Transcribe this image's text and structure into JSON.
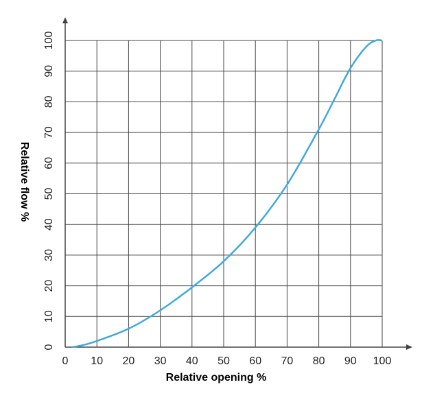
{
  "chart_data": {
    "type": "line",
    "x_label": "Relative opening %",
    "y_label": "Relative flow %",
    "series": [
      {
        "name": "flow",
        "color": "#3fa9dc",
        "x": [
          2,
          5,
          10,
          20,
          30,
          40,
          50,
          60,
          70,
          80,
          85,
          90,
          95,
          98,
          100
        ],
        "values": [
          0,
          0.5,
          2,
          6,
          12,
          19.5,
          28,
          39,
          53,
          71,
          81,
          91,
          98,
          100,
          100
        ]
      }
    ],
    "xlim": [
      0,
      100
    ],
    "xticks": [
      0,
      10,
      20,
      30,
      40,
      50,
      60,
      70,
      80,
      90,
      100
    ],
    "ylim": [
      0,
      100
    ],
    "yticks": [
      0,
      10,
      20,
      30,
      40,
      50,
      60,
      70,
      80,
      90,
      100
    ],
    "grid": true
  }
}
